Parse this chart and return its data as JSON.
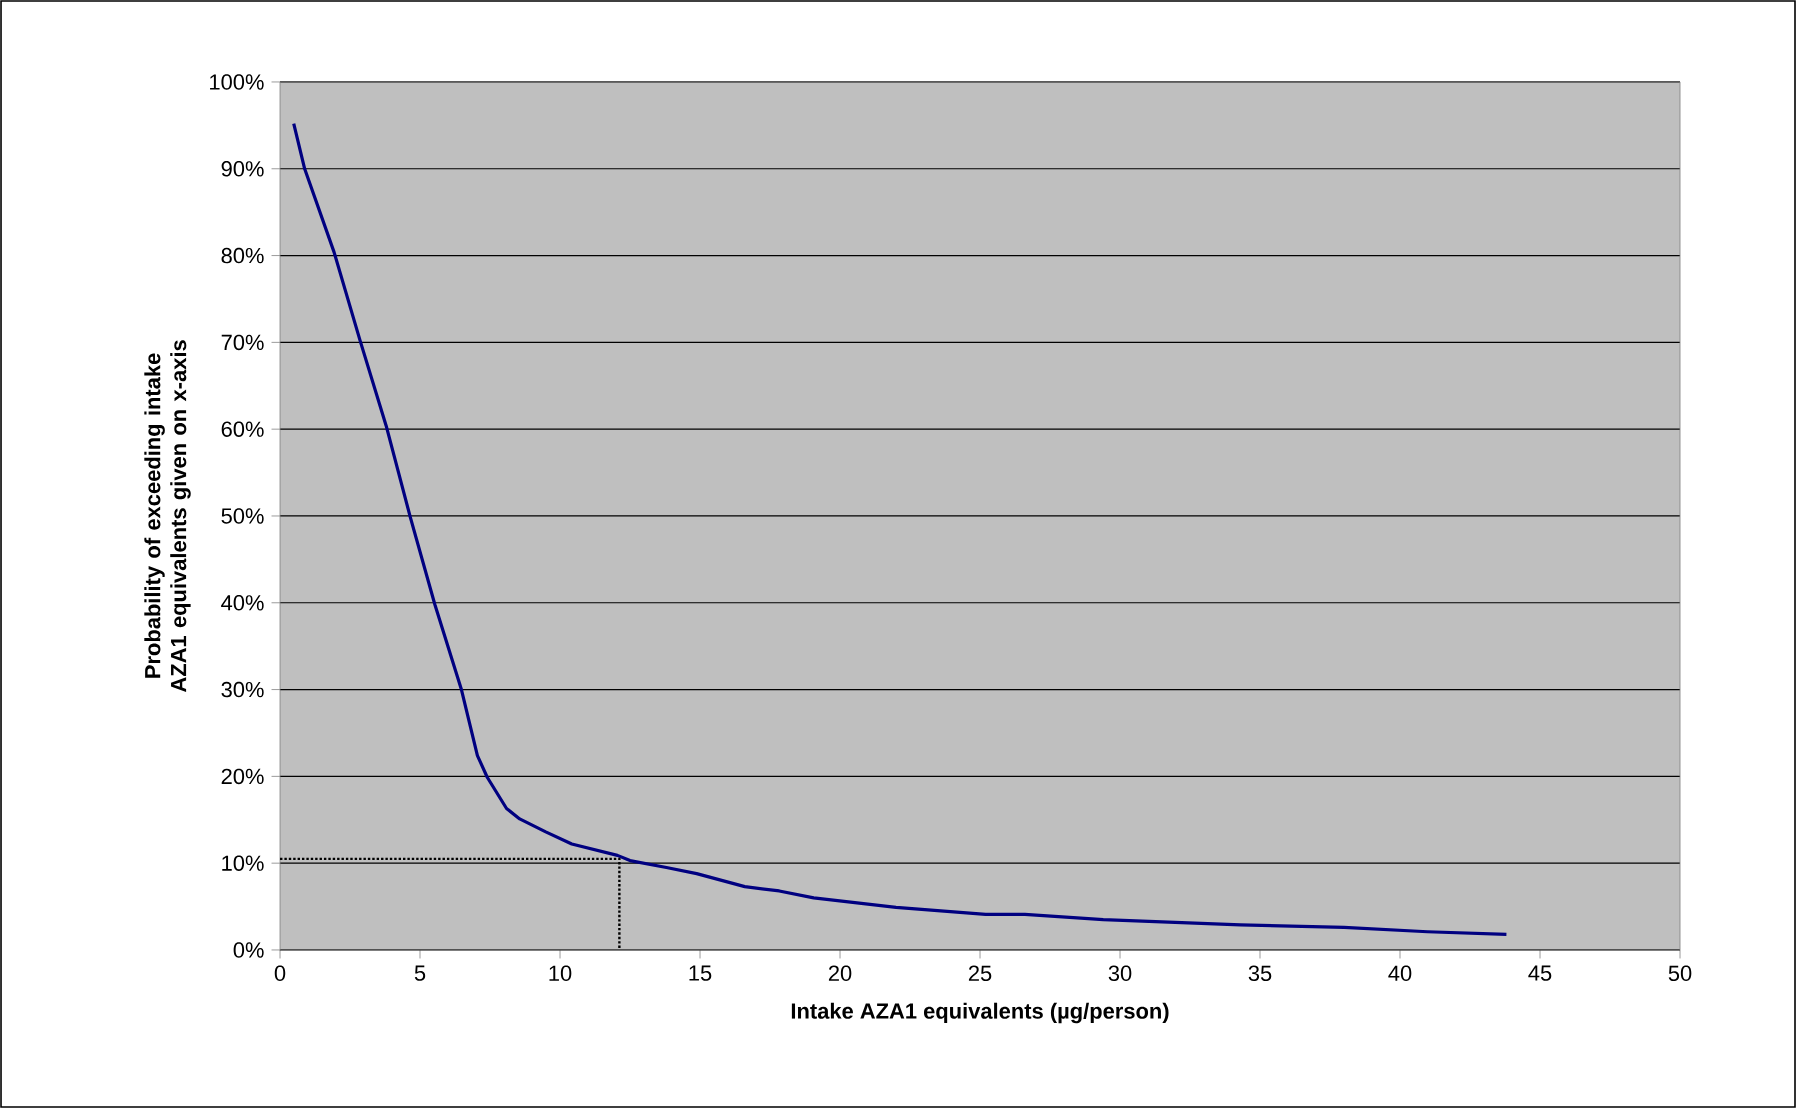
{
  "chart_data": {
    "type": "line",
    "xlabel": "Intake AZA1 equivalents  (µg/person)",
    "ylabel": "Probability of exceeding intake AZA1 equivalents given on x-axis",
    "xlim": [
      0,
      50
    ],
    "xticks": [
      0,
      5,
      10,
      15,
      20,
      25,
      30,
      35,
      40,
      45,
      50
    ],
    "ylim": [
      0,
      100
    ],
    "yticks": [
      {
        "value": 0,
        "label": "0%"
      },
      {
        "value": 10,
        "label": "10%"
      },
      {
        "value": 20,
        "label": "20%"
      },
      {
        "value": 30,
        "label": "30%"
      },
      {
        "value": 40,
        "label": "40%"
      },
      {
        "value": 50,
        "label": "50%"
      },
      {
        "value": 60,
        "label": "60%"
      },
      {
        "value": 70,
        "label": "70%"
      },
      {
        "value": 80,
        "label": "80%"
      },
      {
        "value": 90,
        "label": "90%"
      },
      {
        "value": 100,
        "label": "100%"
      }
    ],
    "grid": "y",
    "marker": "none",
    "series": [
      {
        "color": "#000080",
        "line_style": "solid",
        "x": [
          0.49,
          0.88,
          1.93,
          2.86,
          3.79,
          4.65,
          5.53,
          6.47,
          7.05,
          7.4,
          8.09,
          8.56,
          9.49,
          10.42,
          12.05,
          12.5,
          13.8,
          14.88,
          16.6,
          17.83,
          19.06,
          22.0,
          25.2,
          26.6,
          29.4,
          34.3,
          38.0,
          40.98,
          43.8
        ],
        "values": [
          95.2,
          90.0,
          80.4,
          70.2,
          60.4,
          49.9,
          39.8,
          30.1,
          22.4,
          19.9,
          16.3,
          15.1,
          13.6,
          12.2,
          10.9,
          10.3,
          9.5,
          8.8,
          7.3,
          6.8,
          6.0,
          4.9,
          4.1,
          4.1,
          3.5,
          2.9,
          2.6,
          2.1,
          1.8
        ]
      },
      {
        "color": "#000000",
        "line_style": "dotted",
        "x": [
          0,
          12.12,
          12.12
        ],
        "values": [
          10.5,
          10.5,
          0
        ]
      }
    ]
  }
}
